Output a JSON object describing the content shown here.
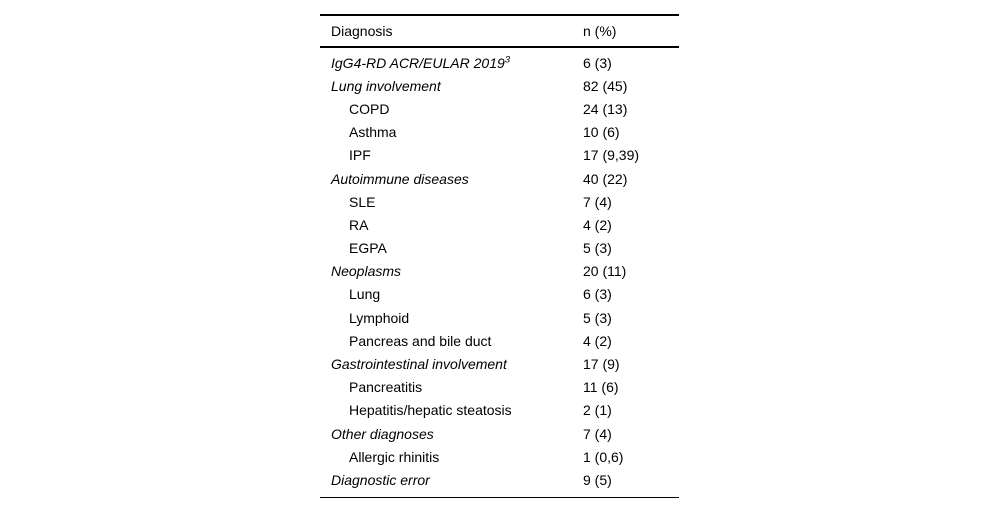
{
  "page": {
    "background": "#ffffff",
    "text_color": "#000000",
    "rule_color": "#000000"
  },
  "table": {
    "columns": [
      "Diagnosis",
      "n (%)"
    ],
    "rows": [
      {
        "label": "IgG4-RD ACR/EULAR 2019",
        "sup": "3",
        "value": "6 (3)",
        "italic": true,
        "indent": 0
      },
      {
        "label": "Lung involvement",
        "value": "82 (45)",
        "italic": true,
        "indent": 0
      },
      {
        "label": "COPD",
        "value": "24 (13)",
        "italic": false,
        "indent": 1
      },
      {
        "label": "Asthma",
        "value": "10 (6)",
        "italic": false,
        "indent": 1
      },
      {
        "label": "IPF",
        "value": "17 (9,39)",
        "italic": false,
        "indent": 1
      },
      {
        "label": "Autoimmune diseases",
        "value": "40 (22)",
        "italic": true,
        "indent": 0
      },
      {
        "label": "SLE",
        "value": "7 (4)",
        "italic": false,
        "indent": 1
      },
      {
        "label": "RA",
        "value": "4 (2)",
        "italic": false,
        "indent": 1
      },
      {
        "label": "EGPA",
        "value": "5 (3)",
        "italic": false,
        "indent": 1
      },
      {
        "label": "Neoplasms",
        "value": "20 (11)",
        "italic": true,
        "indent": 0
      },
      {
        "label": "Lung",
        "value": "6 (3)",
        "italic": false,
        "indent": 1
      },
      {
        "label": "Lymphoid",
        "value": "5 (3)",
        "italic": false,
        "indent": 1
      },
      {
        "label": "Pancreas and bile duct",
        "value": "4 (2)",
        "italic": false,
        "indent": 1
      },
      {
        "label": "Gastrointestinal involvement",
        "value": "17 (9)",
        "italic": true,
        "indent": 0
      },
      {
        "label": "Pancreatitis",
        "value": "11 (6)",
        "italic": false,
        "indent": 1
      },
      {
        "label": "Hepatitis/hepatic steatosis",
        "value": "2 (1)",
        "italic": false,
        "indent": 1
      },
      {
        "label": "Other diagnoses",
        "value": "7 (4)",
        "italic": true,
        "indent": 0
      },
      {
        "label": "Allergic rhinitis",
        "value": "1 (0,6)",
        "italic": false,
        "indent": 1
      },
      {
        "label": "Diagnostic error",
        "value": "9 (5)",
        "italic": true,
        "indent": 0
      }
    ]
  },
  "chart_data": {
    "type": "table",
    "title": "",
    "columns": [
      "Diagnosis",
      "n (%)"
    ],
    "rows": [
      [
        "IgG4-RD ACR/EULAR 2019 [3]",
        "6 (3)"
      ],
      [
        "Lung involvement",
        "82 (45)"
      ],
      [
        "COPD",
        "24 (13)"
      ],
      [
        "Asthma",
        "10 (6)"
      ],
      [
        "IPF",
        "17 (9,39)"
      ],
      [
        "Autoimmune diseases",
        "40 (22)"
      ],
      [
        "SLE",
        "7 (4)"
      ],
      [
        "RA",
        "4 (2)"
      ],
      [
        "EGPA",
        "5 (3)"
      ],
      [
        "Neoplasms",
        "20 (11)"
      ],
      [
        "Lung",
        "6 (3)"
      ],
      [
        "Lymphoid",
        "5 (3)"
      ],
      [
        "Pancreas and bile duct",
        "4 (2)"
      ],
      [
        "Gastrointestinal involvement",
        "17 (9)"
      ],
      [
        "Pancreatitis",
        "11 (6)"
      ],
      [
        "Hepatitis/hepatic steatosis",
        "2 (1)"
      ],
      [
        "Other diagnoses",
        "7 (4)"
      ],
      [
        "Allergic rhinitis",
        "1 (0,6)"
      ],
      [
        "Diagnostic error",
        "9 (5)"
      ]
    ]
  }
}
